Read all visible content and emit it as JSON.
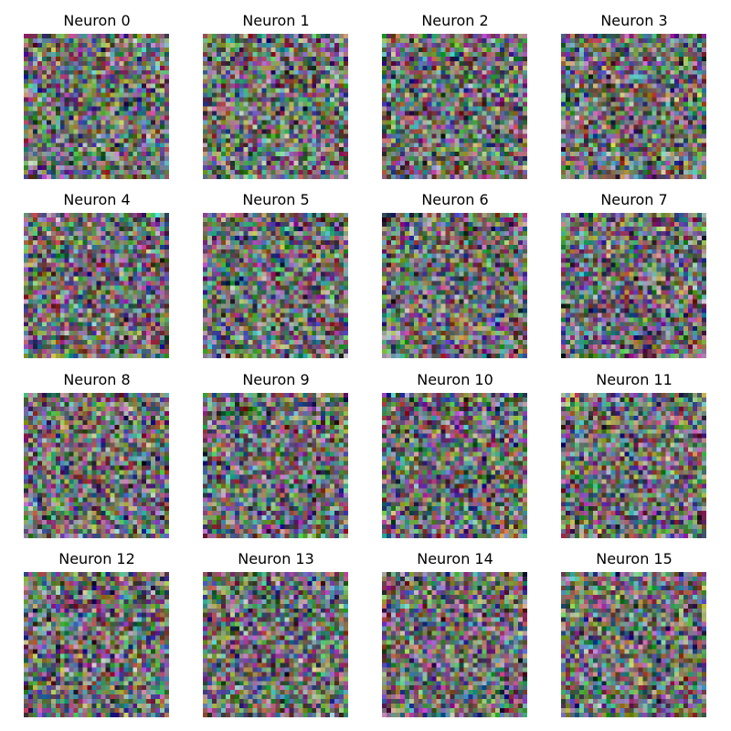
{
  "figure": {
    "image_style": "RGB pixel noise (32x32 weight visualizations)",
    "panels": [
      {
        "title": "Neuron 0"
      },
      {
        "title": "Neuron 1"
      },
      {
        "title": "Neuron 2"
      },
      {
        "title": "Neuron 3"
      },
      {
        "title": "Neuron 4"
      },
      {
        "title": "Neuron 5"
      },
      {
        "title": "Neuron 6"
      },
      {
        "title": "Neuron 7"
      },
      {
        "title": "Neuron 8"
      },
      {
        "title": "Neuron 9"
      },
      {
        "title": "Neuron 10"
      },
      {
        "title": "Neuron 11"
      },
      {
        "title": "Neuron 12"
      },
      {
        "title": "Neuron 13"
      },
      {
        "title": "Neuron 14"
      },
      {
        "title": "Neuron 15"
      }
    ]
  }
}
